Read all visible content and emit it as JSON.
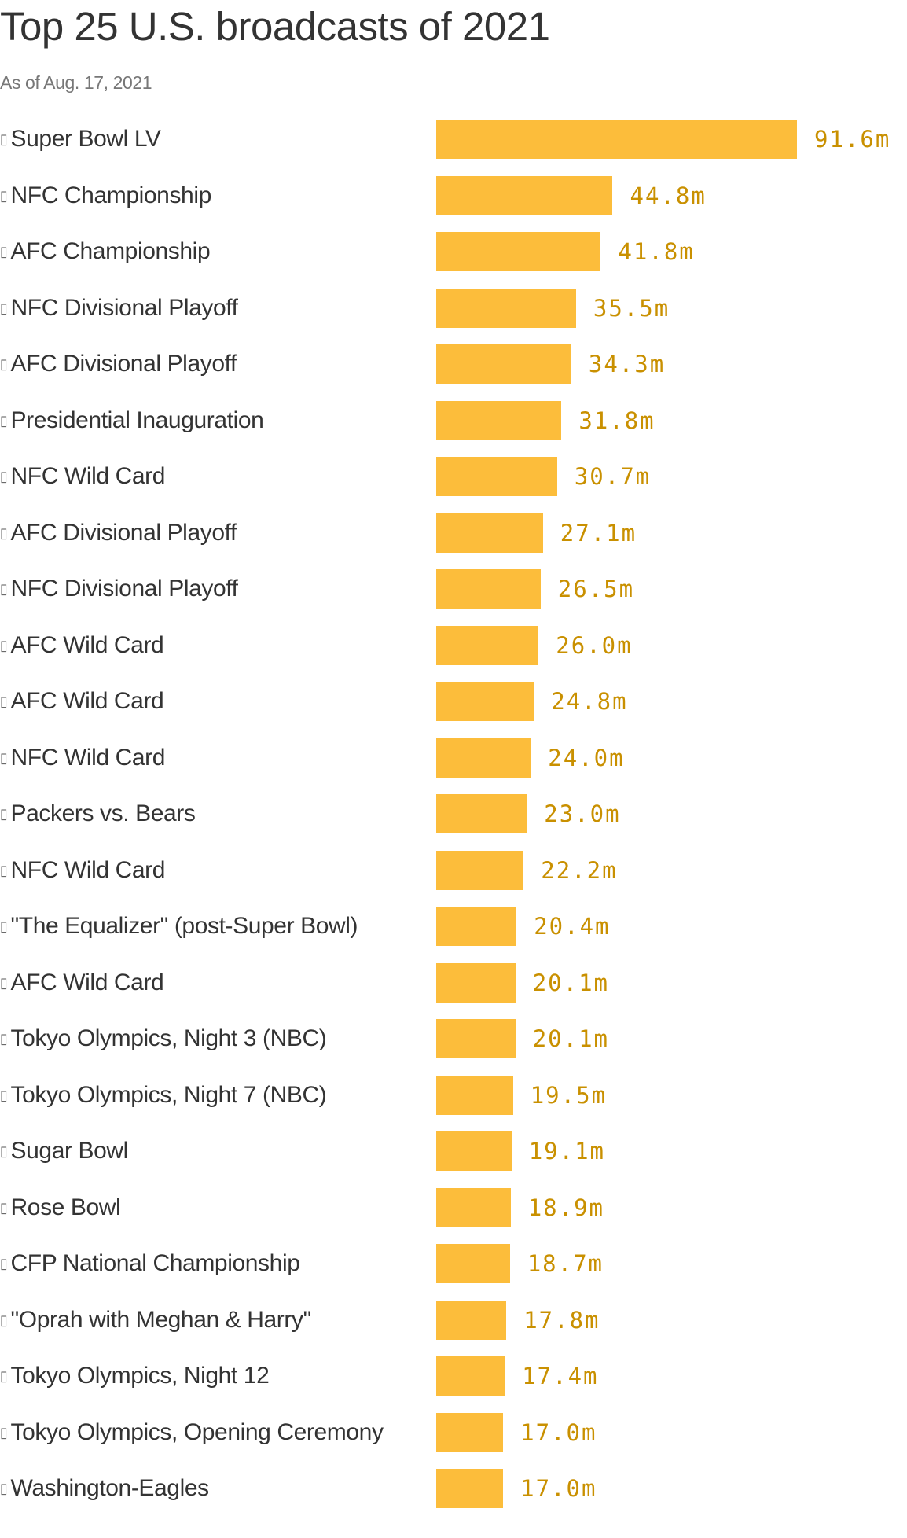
{
  "chart_data": {
    "type": "bar",
    "orientation": "horizontal",
    "title": "Top 25 U.S. broadcasts of 2021",
    "subtitle": "As of Aug. 17, 2021",
    "label_glyph": "▯",
    "categories": [
      "Super Bowl LV",
      "NFC Championship",
      "AFC Championship",
      "NFC Divisional Playoff",
      "AFC Divisional Playoff",
      "Presidential Inauguration",
      "NFC Wild Card",
      "AFC Divisional Playoff",
      "NFC Divisional Playoff",
      "AFC Wild Card",
      "AFC Wild Card",
      "NFC Wild Card",
      "Packers vs. Bears",
      "NFC Wild Card",
      "\"The Equalizer\" (post-Super Bowl)",
      "AFC Wild Card",
      "Tokyo Olympics, Night 3 (NBC)",
      "Tokyo Olympics, Night 7 (NBC)",
      "Sugar Bowl",
      "Rose Bowl",
      "CFP National Championship",
      "\"Oprah with Meghan & Harry\"",
      "Tokyo Olympics, Night 12",
      "Tokyo Olympics, Opening Ceremony",
      "Washington-Eagles"
    ],
    "values": [
      91.6,
      44.8,
      41.8,
      35.5,
      34.3,
      31.8,
      30.7,
      27.1,
      26.5,
      26.0,
      24.8,
      24.0,
      23.0,
      22.2,
      20.4,
      20.1,
      20.1,
      19.5,
      19.1,
      18.9,
      18.7,
      17.8,
      17.4,
      17.0,
      17.0
    ],
    "value_labels": [
      "91.6m",
      "44.8m",
      "41.8m",
      "35.5m",
      "34.3m",
      "31.8m",
      "30.7m",
      "27.1m",
      "26.5m",
      "26.0m",
      "24.8m",
      "24.0m",
      "23.0m",
      "22.2m",
      "20.4m",
      "20.1m",
      "20.1m",
      "19.5m",
      "19.1m",
      "18.9m",
      "18.7m",
      "17.8m",
      "17.4m",
      "17.0m",
      "17.0m"
    ],
    "xlim": [
      0,
      91.6
    ],
    "grid": false,
    "legend": "none",
    "colors": {
      "bar": "#fcbd3b",
      "value_text": "#c99000",
      "title_text": "#333333",
      "subtitle_text": "#777777"
    }
  }
}
